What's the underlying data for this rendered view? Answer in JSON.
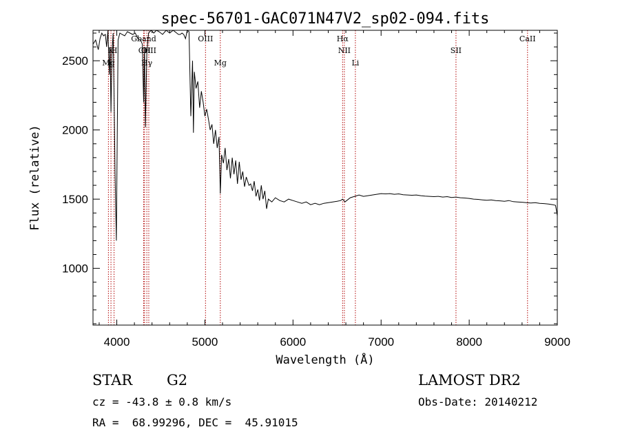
{
  "chart_data": {
    "type": "line",
    "title": "spec-56701-GAC071N47V2_sp02-094.fits",
    "xlabel": "Wavelength (Å)",
    "ylabel": "Flux (relative)",
    "xlim": [
      3730,
      9000
    ],
    "ylim": [
      590,
      2720
    ],
    "xticks": [
      4000,
      5000,
      6000,
      7000,
      8000,
      9000
    ],
    "yticks": [
      1000,
      1500,
      2000,
      2500
    ],
    "line_color": "#000000",
    "marker_color": "#b00000",
    "spectral_lines": [
      {
        "name": "K",
        "wavelength": 3934,
        "label_row": 2
      },
      {
        "name": "H",
        "wavelength": 3969,
        "label_row": 2
      },
      {
        "name": "Mg",
        "wavelength": 3905,
        "label_row": 3
      },
      {
        "name": "Gband",
        "wavelength": 4305,
        "label_row": 1
      },
      {
        "name": "CH",
        "wavelength": 4315,
        "label_row": 2
      },
      {
        "name": "Hγ",
        "wavelength": 4341,
        "label_row": 3
      },
      {
        "name": "OIII",
        "wavelength": 4363,
        "label_row": 2
      },
      {
        "name": "OIII",
        "wavelength": 5007,
        "label_row": 1
      },
      {
        "name": "Mg",
        "wavelength": 5175,
        "label_row": 3
      },
      {
        "name": "Hα",
        "wavelength": 6563,
        "label_row": 1
      },
      {
        "name": "NII",
        "wavelength": 6583,
        "label_row": 2
      },
      {
        "name": "Li",
        "wavelength": 6708,
        "label_row": 3
      },
      {
        "name": "SII",
        "wavelength": 7850,
        "label_row": 2
      },
      {
        "name": "CaII",
        "wavelength": 8662,
        "label_row": 1
      }
    ],
    "series": [
      {
        "x": [
          3730,
          3760,
          3790,
          3810,
          3830,
          3850,
          3870,
          3885,
          3900,
          3915,
          3925,
          3934,
          3945,
          3958,
          3969,
          3980,
          3995,
          4015,
          4035,
          4060,
          4090,
          4120,
          4150,
          4180,
          4210,
          4240,
          4270,
          4290,
          4305,
          4315,
          4325,
          4341,
          4360,
          4390,
          4420,
          4450,
          4480,
          4520,
          4560,
          4600,
          4640,
          4680,
          4700,
          4720,
          4740,
          4760,
          4780,
          4800,
          4820,
          4840,
          4860,
          4870,
          4880,
          4900,
          4920,
          4940,
          4960,
          4980,
          5000,
          5020,
          5040,
          5060,
          5080,
          5100,
          5120,
          5140,
          5160,
          5175,
          5190,
          5210,
          5230,
          5250,
          5270,
          5290,
          5310,
          5330,
          5350,
          5370,
          5390,
          5410,
          5430,
          5450,
          5470,
          5500,
          5520,
          5540,
          5560,
          5580,
          5600,
          5620,
          5640,
          5660,
          5680,
          5700,
          5720,
          5760,
          5800,
          5850,
          5900,
          5950,
          6000,
          6050,
          6100,
          6150,
          6200,
          6250,
          6300,
          6350,
          6400,
          6450,
          6500,
          6540,
          6563,
          6590,
          6650,
          6700,
          6750,
          6800,
          6850,
          6900,
          6950,
          7000,
          7050,
          7100,
          7150,
          7200,
          7250,
          7300,
          7350,
          7400,
          7450,
          7500,
          7550,
          7600,
          7650,
          7700,
          7750,
          7800,
          7850,
          7900,
          7950,
          8000,
          8050,
          8100,
          8150,
          8200,
          8250,
          8300,
          8350,
          8400,
          8450,
          8500,
          8550,
          8600,
          8650,
          8700,
          8750,
          8800,
          8850,
          8900,
          8950,
          8980,
          8995,
          9000
        ],
        "y": [
          2620,
          2650,
          2580,
          2660,
          2700,
          2680,
          2690,
          2600,
          2720,
          2400,
          2600,
          2130,
          2550,
          2700,
          2250,
          1700,
          1200,
          2650,
          2700,
          2690,
          2680,
          2710,
          2700,
          2690,
          2700,
          2660,
          2650,
          2620,
          2200,
          2600,
          2020,
          2550,
          2700,
          2720,
          2700,
          2720,
          2710,
          2690,
          2720,
          2700,
          2720,
          2700,
          2690,
          2690,
          2700,
          2690,
          2660,
          2720,
          2710,
          2100,
          2500,
          1980,
          2420,
          2300,
          2350,
          2160,
          2280,
          2200,
          2100,
          2150,
          2080,
          2000,
          2040,
          1900,
          2000,
          1870,
          1950,
          1540,
          1820,
          1760,
          1870,
          1710,
          1790,
          1650,
          1800,
          1680,
          1780,
          1610,
          1770,
          1640,
          1700,
          1590,
          1660,
          1600,
          1610,
          1560,
          1630,
          1520,
          1570,
          1490,
          1600,
          1500,
          1560,
          1430,
          1500,
          1480,
          1510,
          1490,
          1480,
          1500,
          1490,
          1480,
          1470,
          1480,
          1460,
          1470,
          1460,
          1470,
          1475,
          1480,
          1485,
          1490,
          1500,
          1480,
          1510,
          1520,
          1530,
          1520,
          1525,
          1530,
          1535,
          1540,
          1538,
          1540,
          1535,
          1538,
          1532,
          1530,
          1528,
          1530,
          1525,
          1522,
          1520,
          1518,
          1520,
          1515,
          1518,
          1512,
          1515,
          1510,
          1508,
          1505,
          1500,
          1498,
          1495,
          1492,
          1495,
          1490,
          1488,
          1485,
          1490,
          1482,
          1480,
          1478,
          1475,
          1472,
          1475,
          1470,
          1468,
          1465,
          1460,
          1455,
          1400,
          1380
        ]
      }
    ]
  },
  "info": {
    "class": "STAR",
    "subclass": "G2",
    "survey": "LAMOST DR2",
    "cz": "cz = -43.8 ± 0.8 km/s",
    "obs_date": "Obs-Date: 20140212",
    "radec": "RA =  68.99296, DEC =  45.91015"
  }
}
